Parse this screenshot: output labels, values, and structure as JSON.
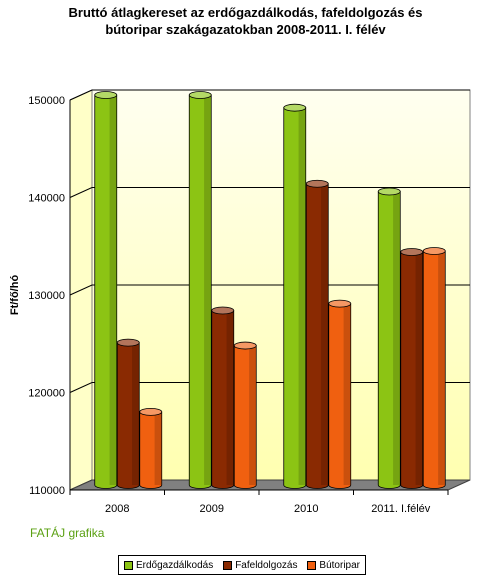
{
  "chart_data": {
    "type": "bar",
    "title_lines": [
      "Bruttó átlagkereset az erdőgazdálkodás, fafeldolgozás és",
      "bútoripar szakágazatokban 2008-2011. I. félév"
    ],
    "ylabel": "Ft/fő/hó",
    "xlabel": "",
    "ylim": [
      110000,
      150000
    ],
    "yticks": [
      110000,
      120000,
      130000,
      140000,
      150000
    ],
    "grid": true,
    "legend_position": "bottom",
    "categories": [
      "2008",
      "2009",
      "2010",
      "2011. I.félév"
    ],
    "series": [
      {
        "name": "Erdőgazdálkodás",
        "color": "#8cc414",
        "values": [
          150000,
          150000,
          148700,
          140100
        ]
      },
      {
        "name": "Fafeldolgozás",
        "color": "#8a2a02",
        "values": [
          124600,
          127900,
          140900,
          133900
        ]
      },
      {
        "name": "Bútoripar",
        "color": "#f06010",
        "values": [
          117500,
          124300,
          128600,
          134000
        ]
      }
    ]
  },
  "source_label": "FATÁJ grafika"
}
